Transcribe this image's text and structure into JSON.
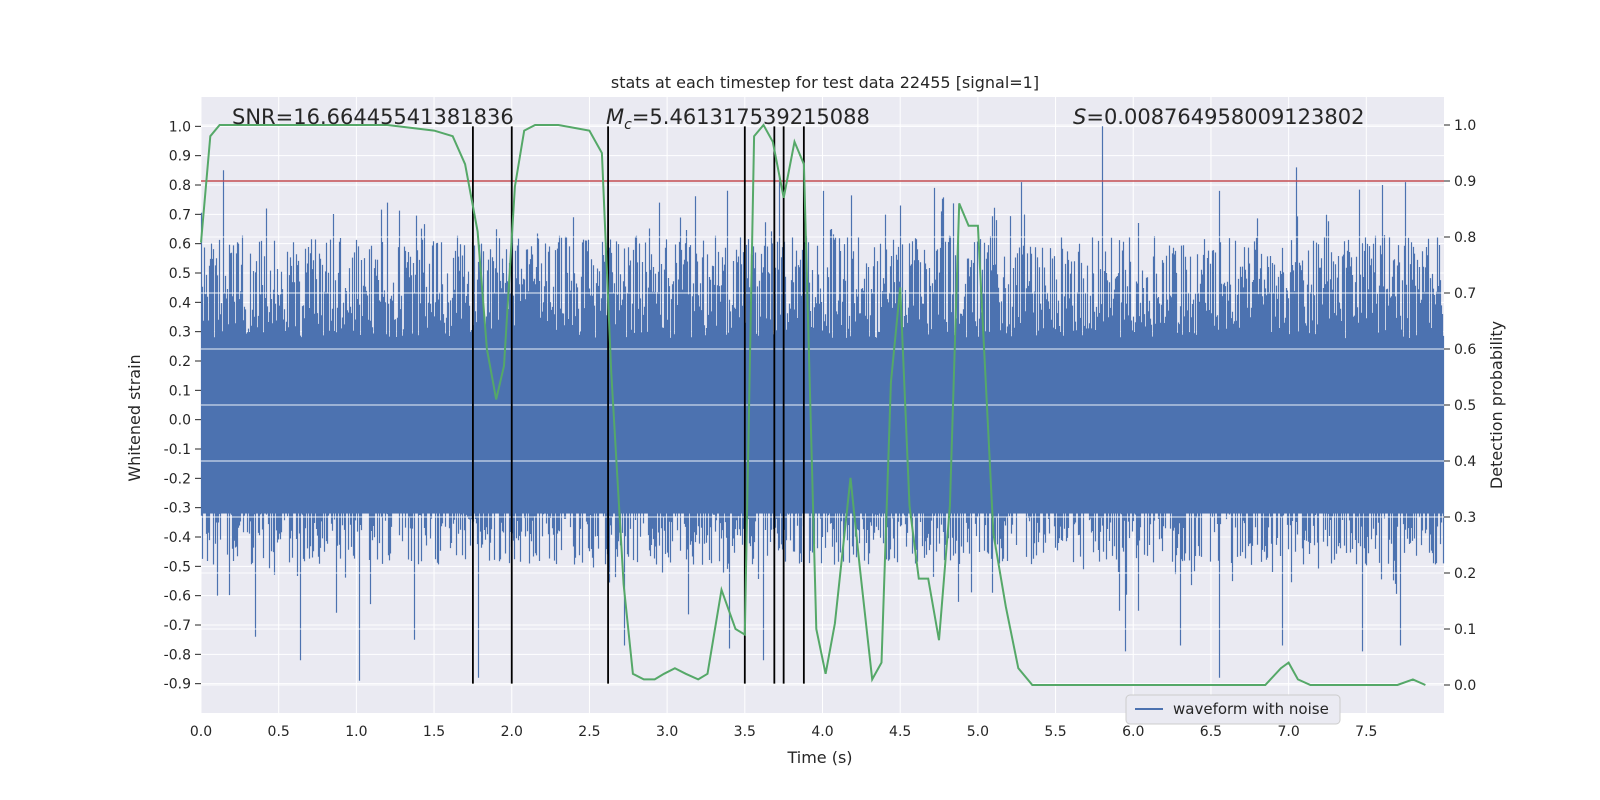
{
  "chart_data": {
    "type": "line",
    "title": "stats at each timestep for test data 22455 [signal=1]",
    "xlabel": "Time (s)",
    "ylabel": "Whitened strain",
    "y2label": "Detection probability",
    "xlim": [
      0.0,
      8.0
    ],
    "ylim": [
      -1.0,
      1.1
    ],
    "y2lim": [
      -0.05,
      1.05
    ],
    "xticks": [
      "0.0",
      "0.5",
      "1.0",
      "1.5",
      "2.0",
      "2.5",
      "3.0",
      "3.5",
      "4.0",
      "4.5",
      "5.0",
      "5.5",
      "6.0",
      "6.5",
      "7.0",
      "7.5"
    ],
    "yticks": [
      "1.0",
      "0.9",
      "0.8",
      "0.7",
      "0.6",
      "0.5",
      "0.4",
      "0.3",
      "0.2",
      "0.1",
      "0.0",
      "-0.1",
      "-0.2",
      "-0.3",
      "-0.4",
      "-0.5",
      "-0.6",
      "-0.7",
      "-0.8",
      "-0.9"
    ],
    "y2ticks": [
      "1.0",
      "0.9",
      "0.8",
      "0.7",
      "0.6",
      "0.5",
      "0.4",
      "0.3",
      "0.2",
      "0.1",
      "0.0"
    ],
    "grid": true,
    "legend": {
      "placement": "lower center",
      "entries": [
        "waveform with noise"
      ]
    },
    "annotations": {
      "snr": "SNR=16.66445541381836",
      "mc_symbol": "M",
      "mc_sub": "c",
      "mc_value": "=5.461317539215088",
      "s_symbol": "S",
      "s_value": "=0.008764958009123802"
    },
    "threshold": {
      "axis": "y2",
      "value": 0.9,
      "color": "#c44e52"
    },
    "vertical_lines_x": [
      1.75,
      2.0,
      2.62,
      3.5,
      3.69,
      3.75,
      3.88
    ],
    "vertical_lines_y_range": [
      -0.9,
      1.0
    ],
    "waveform": {
      "name": "waveform with noise",
      "color": "#4c72b0",
      "band_typical": [
        -0.3,
        0.4
      ],
      "peaks_high": [
        [
          0.14,
          0.85
        ],
        [
          0.42,
          0.72
        ],
        [
          1.2,
          0.74
        ],
        [
          2.0,
          0.67
        ],
        [
          2.95,
          0.74
        ],
        [
          3.72,
          0.83
        ],
        [
          4.0,
          0.78
        ],
        [
          4.5,
          0.73
        ],
        [
          4.72,
          0.79
        ],
        [
          5.28,
          0.81
        ],
        [
          5.8,
          1.0
        ],
        [
          6.55,
          0.78
        ],
        [
          7.05,
          0.86
        ],
        [
          7.6,
          0.8
        ],
        [
          7.75,
          0.81
        ]
      ],
      "peaks_low": [
        [
          0.35,
          -0.74
        ],
        [
          0.64,
          -0.82
        ],
        [
          1.02,
          -0.89
        ],
        [
          1.37,
          -0.75
        ],
        [
          1.78,
          -0.88
        ],
        [
          2.72,
          -0.77
        ],
        [
          3.4,
          -0.78
        ],
        [
          3.62,
          -0.82
        ],
        [
          5.95,
          -0.79
        ],
        [
          6.3,
          -0.77
        ],
        [
          6.55,
          -0.88
        ],
        [
          6.96,
          -0.77
        ],
        [
          7.47,
          -0.79
        ],
        [
          7.72,
          -0.77
        ]
      ]
    },
    "probability": {
      "color": "#55a868",
      "x": [
        0.0,
        0.06,
        0.12,
        0.2,
        0.4,
        0.8,
        1.2,
        1.5,
        1.62,
        1.7,
        1.78,
        1.84,
        1.9,
        1.95,
        2.02,
        2.08,
        2.15,
        2.3,
        2.5,
        2.58,
        2.64,
        2.72,
        2.78,
        2.85,
        2.92,
        2.98,
        3.05,
        3.12,
        3.2,
        3.26,
        3.35,
        3.44,
        3.5,
        3.56,
        3.62,
        3.68,
        3.75,
        3.82,
        3.88,
        3.96,
        4.02,
        4.08,
        4.18,
        4.24,
        4.32,
        4.38,
        4.44,
        4.5,
        4.56,
        4.62,
        4.68,
        4.75,
        4.82,
        4.88,
        4.94,
        5.0,
        5.1,
        5.18,
        5.26,
        5.35,
        5.5,
        5.75,
        6.0,
        6.5,
        6.7,
        6.85,
        6.95,
        7.0,
        7.06,
        7.14,
        7.3,
        7.55,
        7.7,
        7.8,
        7.88
      ],
      "y": [
        0.79,
        0.98,
        1.0,
        1.0,
        1.0,
        1.0,
        1.0,
        0.99,
        0.98,
        0.93,
        0.81,
        0.6,
        0.51,
        0.57,
        0.89,
        0.99,
        1.0,
        1.0,
        0.99,
        0.95,
        0.56,
        0.18,
        0.02,
        0.01,
        0.01,
        0.02,
        0.03,
        0.02,
        0.01,
        0.02,
        0.17,
        0.1,
        0.09,
        0.98,
        1.0,
        0.97,
        0.87,
        0.97,
        0.93,
        0.1,
        0.02,
        0.11,
        0.37,
        0.21,
        0.01,
        0.04,
        0.54,
        0.71,
        0.32,
        0.19,
        0.19,
        0.08,
        0.32,
        0.86,
        0.82,
        0.82,
        0.27,
        0.14,
        0.03,
        0.0,
        0.0,
        0.0,
        0.0,
        0.0,
        0.0,
        0.0,
        0.03,
        0.04,
        0.01,
        0.0,
        0.0,
        0.0,
        0.0,
        0.01,
        0.0
      ]
    }
  }
}
